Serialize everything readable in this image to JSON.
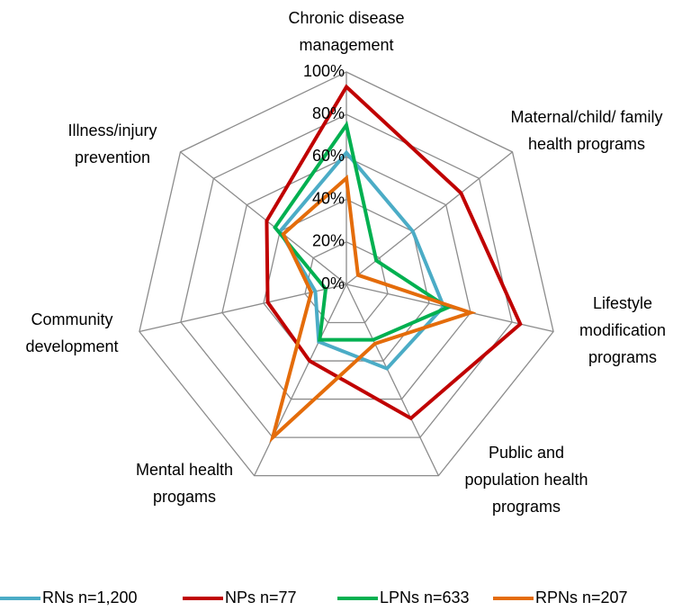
{
  "chart_data": {
    "type": "radar",
    "categories": [
      "Chronic disease management",
      "Maternal/child/ family health programs",
      "Lifestyle modification programs",
      "Public and population health programs",
      "Mental health progams",
      "Community development",
      "Illness/injury prevention"
    ],
    "series": [
      {
        "name": "RNs n=1,200",
        "color": "#4bacc6",
        "values": [
          62,
          40,
          47,
          44,
          30,
          15,
          40
        ]
      },
      {
        "name": "NPs n=77",
        "color": "#c00000",
        "values": [
          93,
          69,
          84,
          70,
          40,
          38,
          48
        ]
      },
      {
        "name": "LPNs n=633",
        "color": "#00b050",
        "values": [
          75,
          18,
          49,
          29,
          29,
          10,
          43
        ]
      },
      {
        "name": "RPNs n=207",
        "color": "#e46c0a",
        "values": [
          50,
          7,
          60,
          31,
          80,
          17,
          38
        ]
      }
    ],
    "ylim": [
      0,
      100
    ],
    "yticks": [
      {
        "value": 0,
        "label": "0%"
      },
      {
        "value": 20,
        "label": "20%"
      },
      {
        "value": 40,
        "label": "40%"
      },
      {
        "value": 60,
        "label": "60%"
      },
      {
        "value": 80,
        "label": "80%"
      },
      {
        "value": 100,
        "label": "100%"
      }
    ],
    "grid": true,
    "legend": "bottom"
  }
}
